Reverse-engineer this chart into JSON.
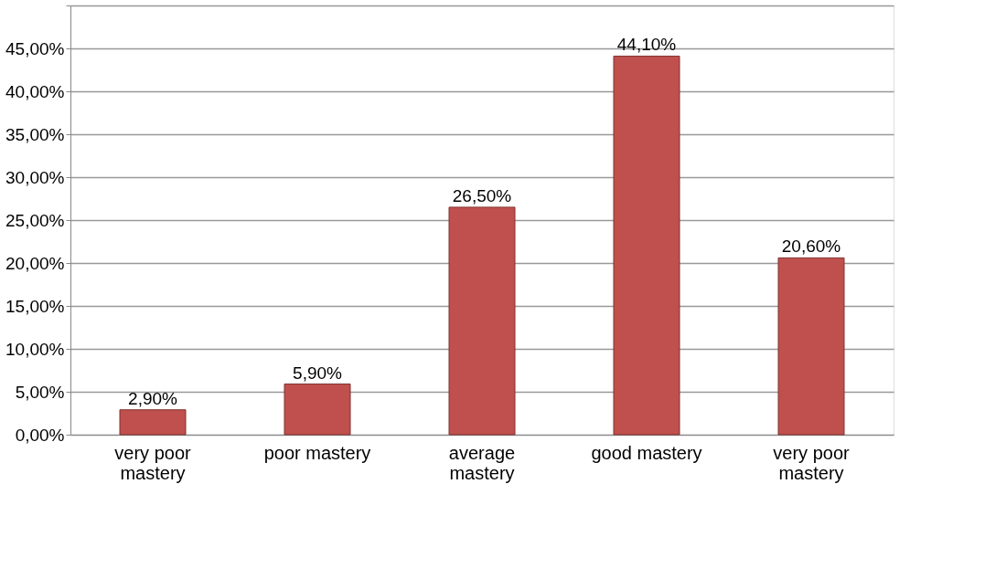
{
  "chart_data": {
    "type": "bar",
    "categories": [
      "very poor mastery",
      "poor mastery",
      "average mastery",
      "good mastery",
      "very poor mastery"
    ],
    "values": [
      2.9,
      5.9,
      26.5,
      44.1,
      20.6
    ],
    "value_labels": [
      "2,90%",
      "5,90%",
      "26,50%",
      "44,10%",
      "20,60%"
    ],
    "color": "#c0504d",
    "ylim": [
      0,
      50
    ],
    "yticks": [
      {
        "value": 0,
        "label": "0,00%"
      },
      {
        "value": 5,
        "label": "5,00%"
      },
      {
        "value": 10,
        "label": "10,00%"
      },
      {
        "value": 15,
        "label": "15,00%"
      },
      {
        "value": 20,
        "label": "20,00%"
      },
      {
        "value": 25,
        "label": "25,00%"
      },
      {
        "value": 30,
        "label": "30,00%"
      },
      {
        "value": 35,
        "label": "35,00%"
      },
      {
        "value": 40,
        "label": "40,00%"
      },
      {
        "value": 45,
        "label": "45,00%"
      },
      {
        "value": 50,
        "label": null
      }
    ],
    "grid": true
  }
}
